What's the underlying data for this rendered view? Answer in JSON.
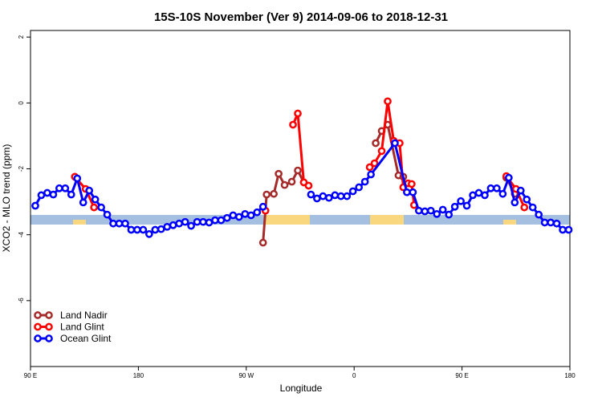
{
  "chart_data": {
    "type": "line",
    "title": "15S-10S November (Ver 9)   2014-09-06 to 2018-12-31",
    "x_label": "Longitude",
    "y_label": "XCO2 - MLO trend (ppm)",
    "xlim": [
      90,
      540
    ],
    "ylim": [
      -8,
      2.2
    ],
    "xticks": [
      {
        "value": 90,
        "label": "90 E"
      },
      180,
      {
        "value": 270,
        "label": "90 W"
      },
      {
        "value": 360,
        "label": "0"
      },
      {
        "value": 450,
        "label": "90 E"
      },
      {
        "value": 540,
        "label": "180"
      }
    ],
    "yticks": [
      2,
      0,
      -2,
      -4,
      -6
    ],
    "legend": "bottom-left",
    "series": [
      {
        "name": "Land Nadir",
        "color": "#a52a2a",
        "x": [
          284,
          287,
          293,
          297,
          302,
          308,
          313,
          318,
          350,
          378,
          383,
          388,
          397,
          401,
          440,
          487,
          494
        ],
        "values": [
          -4.24,
          -2.78,
          -2.76,
          -2.15,
          -2.49,
          -2.39,
          -2.05,
          -2.41,
          null,
          -1.22,
          -0.85,
          -0.66,
          -2.2,
          -2.24,
          null,
          -2.27,
          -2.76
        ]
      },
      {
        "name": "Land Glint",
        "color": "#ff0000",
        "x": [
          127,
          136,
          143,
          200,
          286,
          298,
          309,
          313,
          318,
          322,
          350,
          373,
          377,
          383,
          388,
          393,
          398,
          401,
          405,
          408,
          410,
          450,
          487,
          495,
          502
        ],
        "values": [
          -2.24,
          -2.61,
          -3.17,
          null,
          -3.27,
          null,
          -0.66,
          -0.32,
          -2.41,
          -2.51,
          null,
          -1.95,
          -1.83,
          -1.46,
          0.05,
          -1.15,
          -1.22,
          -2.56,
          -2.44,
          -2.46,
          -3.1,
          null,
          -2.22,
          -2.61,
          -3.17
        ]
      },
      {
        "name": "Ocean Glint",
        "color": "#0000ff",
        "x": [
          94,
          99,
          104,
          109,
          114,
          119,
          124,
          129,
          134,
          139,
          144,
          149,
          154,
          159,
          164,
          169,
          174,
          179,
          184,
          189,
          194,
          199,
          204,
          209,
          214,
          219,
          224,
          229,
          234,
          239,
          244,
          249,
          254,
          259,
          264,
          269,
          274,
          279,
          284,
          300,
          324,
          329,
          334,
          339,
          344,
          349,
          354,
          359,
          364,
          369,
          374,
          394,
          404,
          409,
          414,
          419,
          424,
          429,
          434,
          439,
          444,
          449,
          454,
          459,
          464,
          469,
          474,
          479,
          484,
          489,
          494,
          499,
          504,
          509,
          514,
          519,
          524,
          529,
          534,
          539
        ],
        "values": [
          -3.12,
          -2.8,
          -2.73,
          -2.78,
          -2.59,
          -2.59,
          -2.78,
          -2.29,
          -3.02,
          -2.66,
          -2.93,
          -3.17,
          -3.39,
          -3.66,
          -3.66,
          -3.66,
          -3.85,
          -3.85,
          -3.85,
          -3.98,
          -3.85,
          -3.83,
          -3.76,
          -3.71,
          -3.66,
          -3.61,
          -3.73,
          -3.61,
          -3.61,
          -3.63,
          -3.56,
          -3.56,
          -3.49,
          -3.41,
          -3.46,
          -3.37,
          -3.41,
          -3.32,
          -3.15,
          null,
          -2.78,
          -2.9,
          -2.83,
          -2.88,
          -2.8,
          -2.83,
          -2.83,
          -2.68,
          -2.56,
          -2.39,
          -2.17,
          -1.22,
          -2.71,
          -2.71,
          -3.27,
          -3.29,
          -3.27,
          -3.37,
          -3.24,
          -3.39,
          -3.15,
          -2.98,
          -3.12,
          -2.8,
          -2.73,
          -2.8,
          -2.59,
          -2.59,
          -2.76,
          -2.27,
          -3.02,
          -2.66,
          -2.93,
          -3.17,
          -3.39,
          -3.63,
          -3.63,
          -3.66,
          -3.85,
          -3.85
        ]
      }
    ]
  }
}
